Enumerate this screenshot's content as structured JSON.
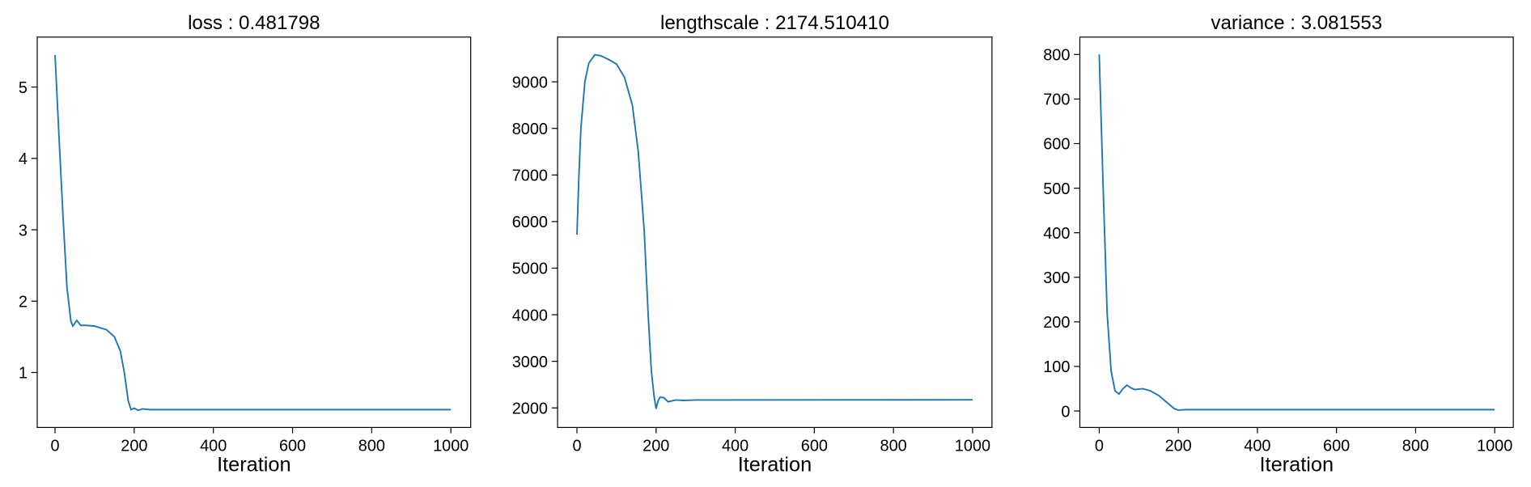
{
  "chart_data": [
    {
      "type": "line",
      "title": "loss : 0.481798",
      "x_label": "Iteration",
      "xlim": [
        -45,
        1050
      ],
      "xticks": [
        0,
        200,
        400,
        600,
        800,
        1000
      ],
      "ylim": [
        0.23,
        5.7
      ],
      "yticks": [
        1,
        2,
        3,
        4,
        5
      ],
      "series": [
        {
          "color": "#1f77b4",
          "x": [
            0,
            10,
            20,
            30,
            40,
            45,
            55,
            65,
            80,
            100,
            130,
            150,
            165,
            175,
            185,
            192,
            200,
            210,
            220,
            240,
            1000
          ],
          "values": [
            5.45,
            4.3,
            3.2,
            2.2,
            1.72,
            1.65,
            1.73,
            1.66,
            1.66,
            1.65,
            1.6,
            1.5,
            1.3,
            1.0,
            0.6,
            0.48,
            0.5,
            0.47,
            0.49,
            0.48,
            0.48
          ]
        }
      ]
    },
    {
      "type": "line",
      "title": "lengthscale : 2174.510410",
      "x_label": "Iteration",
      "xlim": [
        -49,
        1049
      ],
      "xticks": [
        0,
        200,
        400,
        600,
        800,
        1000
      ],
      "ylim": [
        1580,
        9960
      ],
      "yticks": [
        2000,
        3000,
        4000,
        5000,
        6000,
        7000,
        8000,
        9000
      ],
      "series": [
        {
          "color": "#1f77b4",
          "x": [
            0,
            5,
            10,
            20,
            30,
            45,
            60,
            80,
            100,
            120,
            140,
            155,
            170,
            180,
            188,
            195,
            200,
            205,
            210,
            220,
            230,
            250,
            270,
            300,
            1000
          ],
          "values": [
            5720,
            7000,
            8000,
            9000,
            9400,
            9580,
            9560,
            9480,
            9380,
            9100,
            8500,
            7500,
            5800,
            4000,
            2800,
            2250,
            1980,
            2150,
            2230,
            2220,
            2130,
            2170,
            2160,
            2170,
            2174
          ]
        }
      ]
    },
    {
      "type": "line",
      "title": "variance : 3.081553",
      "x_label": "Iteration",
      "xlim": [
        -49,
        1047
      ],
      "xticks": [
        0,
        200,
        400,
        600,
        800,
        1000
      ],
      "ylim": [
        -37,
        839
      ],
      "yticks": [
        0,
        100,
        200,
        300,
        400,
        500,
        600,
        700,
        800
      ],
      "series": [
        {
          "color": "#1f77b4",
          "x": [
            0,
            10,
            20,
            30,
            40,
            50,
            60,
            70,
            80,
            90,
            110,
            130,
            150,
            170,
            190,
            200,
            220,
            1000
          ],
          "values": [
            800,
            500,
            220,
            90,
            45,
            38,
            50,
            58,
            52,
            48,
            50,
            45,
            35,
            20,
            5,
            2,
            3,
            3
          ]
        }
      ]
    }
  ]
}
